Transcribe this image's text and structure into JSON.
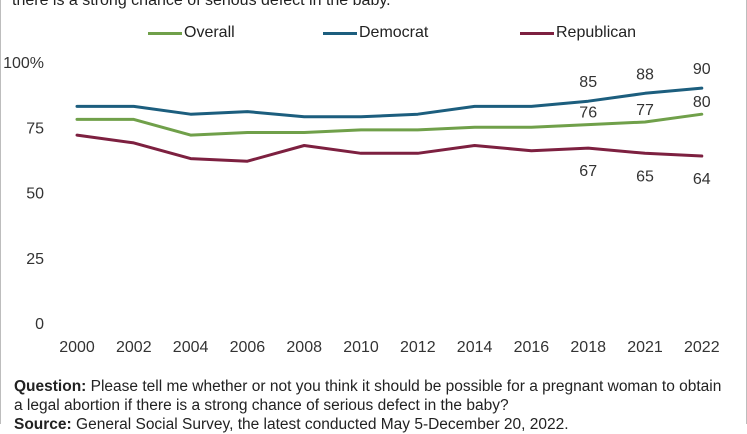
{
  "title_fragment": "there is a strong chance of serious defect in the baby.",
  "legend": [
    {
      "name": "Overall",
      "color": "#70a04a"
    },
    {
      "name": "Democrat",
      "color": "#1c5e7e"
    },
    {
      "name": "Republican",
      "color": "#7d2040"
    }
  ],
  "chart_data": {
    "type": "line",
    "x": [
      "2000",
      "2002",
      "2004",
      "2006",
      "2008",
      "2010",
      "2012",
      "2014",
      "2016",
      "2018",
      "2021",
      "2022"
    ],
    "ylim": [
      0,
      100
    ],
    "yticks": [
      "0",
      "25",
      "50",
      "75",
      "100%"
    ],
    "yticks_values": [
      0,
      25,
      50,
      75,
      100
    ],
    "grid": false,
    "legend_position": "top",
    "series": [
      {
        "name": "Overall",
        "color": "#70a04a",
        "values": [
          78,
          78,
          72,
          73,
          73,
          74,
          74,
          75,
          75,
          76,
          77,
          80
        ]
      },
      {
        "name": "Democrat",
        "color": "#1c5e7e",
        "values": [
          83,
          83,
          80,
          81,
          79,
          79,
          80,
          83,
          83,
          85,
          88,
          90
        ]
      },
      {
        "name": "Republican",
        "color": "#7d2040",
        "values": [
          72,
          69,
          63,
          62,
          68,
          65,
          65,
          68,
          66,
          67,
          65,
          64
        ]
      }
    ],
    "data_labels": [
      {
        "series": "Democrat",
        "x": "2018",
        "value": "85"
      },
      {
        "series": "Democrat",
        "x": "2021",
        "value": "88"
      },
      {
        "series": "Democrat",
        "x": "2022",
        "value": "90"
      },
      {
        "series": "Overall",
        "x": "2018",
        "value": "76"
      },
      {
        "series": "Overall",
        "x": "2021",
        "value": "77"
      },
      {
        "series": "Overall",
        "x": "2022",
        "value": "80"
      },
      {
        "series": "Republican",
        "x": "2018",
        "value": "67"
      },
      {
        "series": "Republican",
        "x": "2021",
        "value": "65"
      },
      {
        "series": "Republican",
        "x": "2022",
        "value": "64"
      }
    ]
  },
  "footer": {
    "question_label": "Question:",
    "question_text": " Please tell me whether or not you think it should be possible for a pregnant woman to obtain a legal abortion if there is a strong chance of serious defect in the baby?",
    "source_label": "Source:",
    "source_text": " General Social Survey, the latest conducted May 5-December 20, 2022."
  }
}
